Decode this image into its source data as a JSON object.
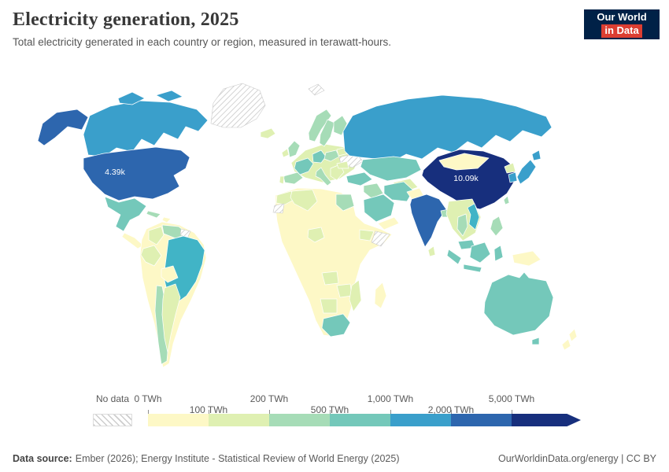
{
  "header": {
    "title": "Electricity generation, 2025",
    "subtitle": "Total electricity generated in each country or region, measured in terawatt-hours.",
    "logo_line1": "Our World",
    "logo_line2": "in Data",
    "logo_bg": "#002147",
    "logo_accent": "#dc3e32"
  },
  "map": {
    "labels": {
      "usa": "4.39k",
      "china": "10.09k"
    },
    "country_fills": {
      "usa": "#2d66ae",
      "canada": "#3a9fcb",
      "mexico": "#74c8ba",
      "central-america": "#fdf8c6",
      "cuba": "#a6dcb7",
      "hispaniola": "#fdf8c6",
      "greenland": "hatch",
      "iceland": "#dff0b2",
      "sa-base": "#fdf8c6",
      "venezuela": "#a6dcb7",
      "guyana": "hatch",
      "colombia": "#dff0b2",
      "brazil": "#41b4c6",
      "peru": "#dff0b2",
      "bolivia": "#fdf8c6",
      "chile": "#a6dcb7",
      "argentina": "#dff0b2",
      "europe-base": "#dff0b2",
      "norway": "#a6dcb7",
      "sweden": "#a6dcb7",
      "finland": "#a6dcb7",
      "uk": "#a6dcb7",
      "ireland": "#dff0b2",
      "france": "#74c8ba",
      "spain": "#a6dcb7",
      "portugal": "#dff0b2",
      "germany": "#74c8ba",
      "poland": "#a6dcb7",
      "italy": "#a6dcb7",
      "balkans": "#dff0b2",
      "ukraine": "hatch",
      "belarus": "#dff0b2",
      "romania": "#dff0b2",
      "svalbard": "hatch",
      "russia": "#3a9fcb",
      "kazakhstan": "#74c8ba",
      "central-asia": "#dff0b2",
      "turkey": "#74c8ba",
      "iraq-levant": "#a6dcb7",
      "saudi-arabia": "#74c8ba",
      "yemen-oman": "#fdf8c6",
      "iran": "#74c8ba",
      "afghanistan": "#fdf8c6",
      "pakistan": "#a6dcb7",
      "africa-base": "#fdf8c6",
      "morocco": "#dff0b2",
      "western-sahara": "hatch",
      "algeria": "#dff0b2",
      "egypt": "#a6dcb7",
      "nigeria": "#dff0b2",
      "ethiopia": "#dff0b2",
      "somalia": "hatch",
      "angola": "#dff0b2",
      "zambia-zimbabwe": "#dff0b2",
      "namibia-botswana": "#dff0b2",
      "south-africa": "#74c8ba",
      "mozambique": "#dff0b2",
      "madagascar": "#fdf8c6",
      "china": "#172f7d",
      "mongolia": "#fdf8c6",
      "india": "#2d66ae",
      "bangladesh": "#a6dcb7",
      "se-asia-base": "#dff0b2",
      "thailand": "#a6dcb7",
      "vietnam": "#41b4c6",
      "malaysia": "#74c8ba",
      "indonesia": "#74c8ba",
      "new-guinea": "#fdf8c6",
      "philippines": "#a6dcb7",
      "japan": "#3a9fcb",
      "south-korea": "#3a9fcb",
      "north-korea": "#dff0b2",
      "taiwan": "#a6dcb7",
      "sri-lanka": "#dff0b2",
      "australia": "#74c8ba",
      "tasmania": "#74c8ba",
      "new-zealand": "#fdf8c6"
    }
  },
  "legend": {
    "no_data_label": "No data",
    "ticks": [
      "0 TWh",
      "100 TWh",
      "200 TWh",
      "500 TWh",
      "1,000 TWh",
      "2,000 TWh",
      "5,000 TWh"
    ],
    "colors": [
      "#fdf8c6",
      "#dff0b2",
      "#a6dcb7",
      "#74c8ba",
      "#3a9fcb",
      "#2d66ae"
    ],
    "arrow_color": "#172f7d"
  },
  "footer": {
    "source_label": "Data source:",
    "source_text": "Ember (2026); Energy Institute - Statistical Review of World Energy (2025)",
    "credit": "OurWorldinData.org/energy | CC BY"
  },
  "chart_data": {
    "type": "choropleth",
    "title": "Electricity generation, 2025",
    "subtitle": "Total electricity generated in each country or region, measured in terawatt-hours.",
    "unit": "TWh",
    "year": 2025,
    "bins": [
      {
        "range": "0-100 TWh",
        "color": "#fdf8c6"
      },
      {
        "range": "100-200 TWh",
        "color": "#dff0b2"
      },
      {
        "range": "200-500 TWh",
        "color": "#a6dcb7"
      },
      {
        "range": "500-1,000 TWh",
        "color": "#74c8ba"
      },
      {
        "range": "1,000-2,000 TWh",
        "color": "#3a9fcb"
      },
      {
        "range": "2,000-5,000 TWh",
        "color": "#2d66ae"
      },
      {
        "range": "5,000+ TWh",
        "color": "#172f7d"
      },
      {
        "range": "No data",
        "color": "hatch"
      }
    ],
    "labeled_points": [
      {
        "entity": "United States",
        "label": "4.39k",
        "value_twh": 4390
      },
      {
        "entity": "China",
        "label": "10.09k",
        "value_twh": 10090
      }
    ],
    "legend_position": "bottom"
  }
}
